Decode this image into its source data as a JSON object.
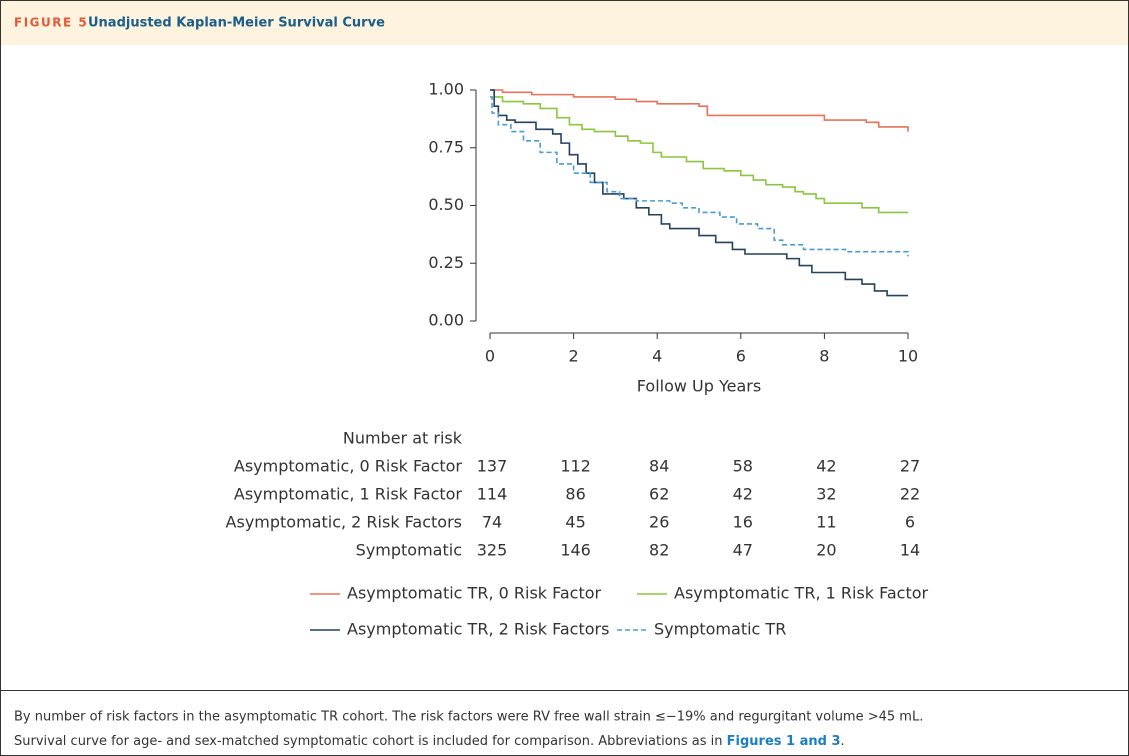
{
  "figure": {
    "label": "FIGURE 5",
    "title": "Unadjusted Kaplan-Meier Survival Curve"
  },
  "chart_data": {
    "type": "line",
    "step": "post",
    "xlabel": "Follow Up Years",
    "xlim": [
      0,
      10
    ],
    "xticks": [
      0,
      2,
      4,
      6,
      8,
      10
    ],
    "ylim": [
      0,
      1
    ],
    "yticks": [
      {
        "value": 0,
        "label": "0.00"
      },
      {
        "value": 0.25,
        "label": "0.25"
      },
      {
        "value": 0.5,
        "label": "0.50"
      },
      {
        "value": 0.75,
        "label": "0.75"
      },
      {
        "value": 1,
        "label": "1.00"
      }
    ],
    "series": [
      {
        "name": "Asymptomatic TR, 0 Risk Factor",
        "color": "#e8715a",
        "dash": false,
        "x": [
          0,
          0.3,
          1,
          2,
          3,
          3.5,
          4,
          5,
          5.2,
          8,
          9,
          9.3,
          10
        ],
        "values": [
          1,
          0.99,
          0.98,
          0.97,
          0.96,
          0.95,
          0.94,
          0.93,
          0.89,
          0.87,
          0.86,
          0.84,
          0.82
        ]
      },
      {
        "name": "Asymptomatic TR, 1 Risk Factor",
        "color": "#8cc63f",
        "dash": false,
        "x": [
          0,
          0.1,
          0.3,
          0.8,
          1.2,
          1.6,
          1.9,
          2.2,
          2.5,
          3,
          3.3,
          3.6,
          3.9,
          4.1,
          4.7,
          5.1,
          5.6,
          6,
          6.3,
          6.6,
          7,
          7.3,
          7.5,
          7.8,
          8,
          8.9,
          9.3,
          10
        ],
        "values": [
          1,
          0.97,
          0.95,
          0.94,
          0.92,
          0.88,
          0.85,
          0.83,
          0.82,
          0.8,
          0.78,
          0.77,
          0.73,
          0.71,
          0.69,
          0.66,
          0.65,
          0.63,
          0.61,
          0.59,
          0.58,
          0.56,
          0.55,
          0.53,
          0.51,
          0.49,
          0.47,
          0.47
        ]
      },
      {
        "name": "Asymptomatic TR, 2 Risk Factors",
        "color": "#25415e",
        "dash": false,
        "x": [
          0,
          0.1,
          0.2,
          0.4,
          0.6,
          1.1,
          1.5,
          1.7,
          1.9,
          2.1,
          2.3,
          2.5,
          2.7,
          3.2,
          3.5,
          3.8,
          4.1,
          4.3,
          5,
          5.4,
          5.8,
          6.1,
          7.1,
          7.4,
          7.7,
          8.5,
          8.9,
          9.2,
          9.5,
          10
        ],
        "values": [
          1,
          0.93,
          0.89,
          0.87,
          0.86,
          0.83,
          0.81,
          0.77,
          0.72,
          0.68,
          0.64,
          0.6,
          0.55,
          0.53,
          0.49,
          0.46,
          0.42,
          0.4,
          0.37,
          0.34,
          0.31,
          0.29,
          0.27,
          0.24,
          0.21,
          0.18,
          0.16,
          0.13,
          0.11,
          0.11
        ]
      },
      {
        "name": "Symptomatic TR",
        "color": "#4a9ad4",
        "dash": true,
        "x": [
          0,
          0.05,
          0.2,
          0.5,
          0.8,
          1.2,
          1.6,
          2,
          2.4,
          2.8,
          3.1,
          3.5,
          4.3,
          4.6,
          5,
          5.5,
          5.9,
          6.4,
          6.8,
          7,
          7.5,
          8.5,
          10
        ],
        "values": [
          0.97,
          0.9,
          0.85,
          0.82,
          0.78,
          0.73,
          0.68,
          0.64,
          0.6,
          0.56,
          0.53,
          0.52,
          0.51,
          0.49,
          0.47,
          0.45,
          0.42,
          0.4,
          0.35,
          0.33,
          0.31,
          0.3,
          0.28
        ]
      }
    ],
    "risk_table": {
      "title": "Number at risk",
      "rows": [
        {
          "label": "Asymptomatic, 0 Risk Factor",
          "values": [
            137,
            112,
            84,
            58,
            42,
            27
          ]
        },
        {
          "label": "Asymptomatic, 1 Risk Factor",
          "values": [
            114,
            86,
            62,
            42,
            32,
            22
          ]
        },
        {
          "label": "Asymptomatic, 2 Risk Factors",
          "values": [
            74,
            45,
            26,
            16,
            11,
            6
          ]
        },
        {
          "label": "Symptomatic",
          "values": [
            325,
            146,
            82,
            47,
            20,
            14
          ]
        }
      ]
    }
  },
  "caption": {
    "line1": "By number of risk factors in the asymptomatic TR cohort. The risk factors were RV free wall strain ≤−19% and regurgitant volume >45 mL.",
    "line2": "Survival curve for age- and sex-matched symptomatic cohort is included for comparison. Abbreviations as in",
    "link": "Figures 1 and 3",
    "end": "."
  }
}
